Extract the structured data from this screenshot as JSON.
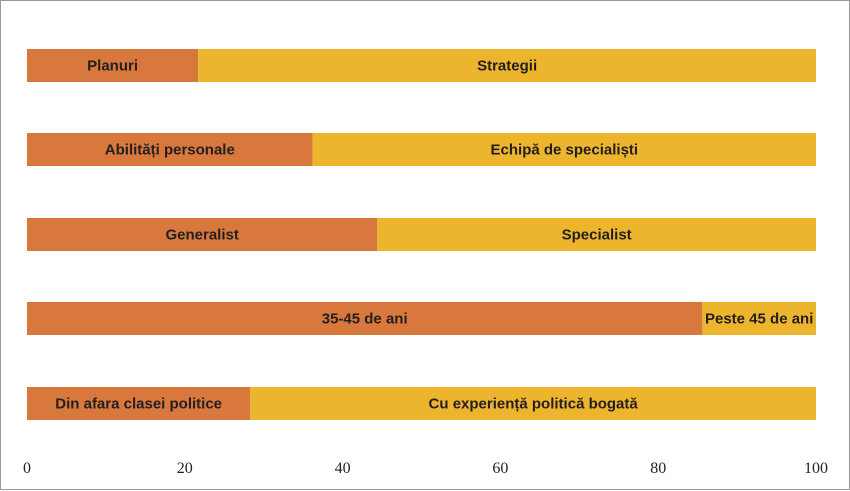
{
  "chart_data": {
    "type": "bar",
    "orientation": "horizontal",
    "stacked": true,
    "xlim": [
      0,
      100
    ],
    "xticks": [
      0,
      20,
      40,
      60,
      80,
      100
    ],
    "grid": false,
    "legend": "none",
    "colors": {
      "left": "#d9783c",
      "right": "#ecb52d"
    },
    "bars": [
      {
        "left_label": "Planuri",
        "left_value": 21.7,
        "right_label": "Strategii",
        "right_value": 78.3
      },
      {
        "left_label": "Abilități personale",
        "left_value": 36.2,
        "right_label": "Echipă de specialiști",
        "right_value": 63.8
      },
      {
        "left_label": "Generalist",
        "left_value": 44.4,
        "right_label": "Specialist",
        "right_value": 55.6
      },
      {
        "left_label": "35-45 de ani",
        "left_value": 85.6,
        "right_label": "Peste 45 de ani",
        "right_value": 14.4
      },
      {
        "left_label": "Din afara clasei politice",
        "left_value": 28.3,
        "right_label": "Cu experiență politică bogată",
        "right_value": 71.7
      }
    ]
  }
}
